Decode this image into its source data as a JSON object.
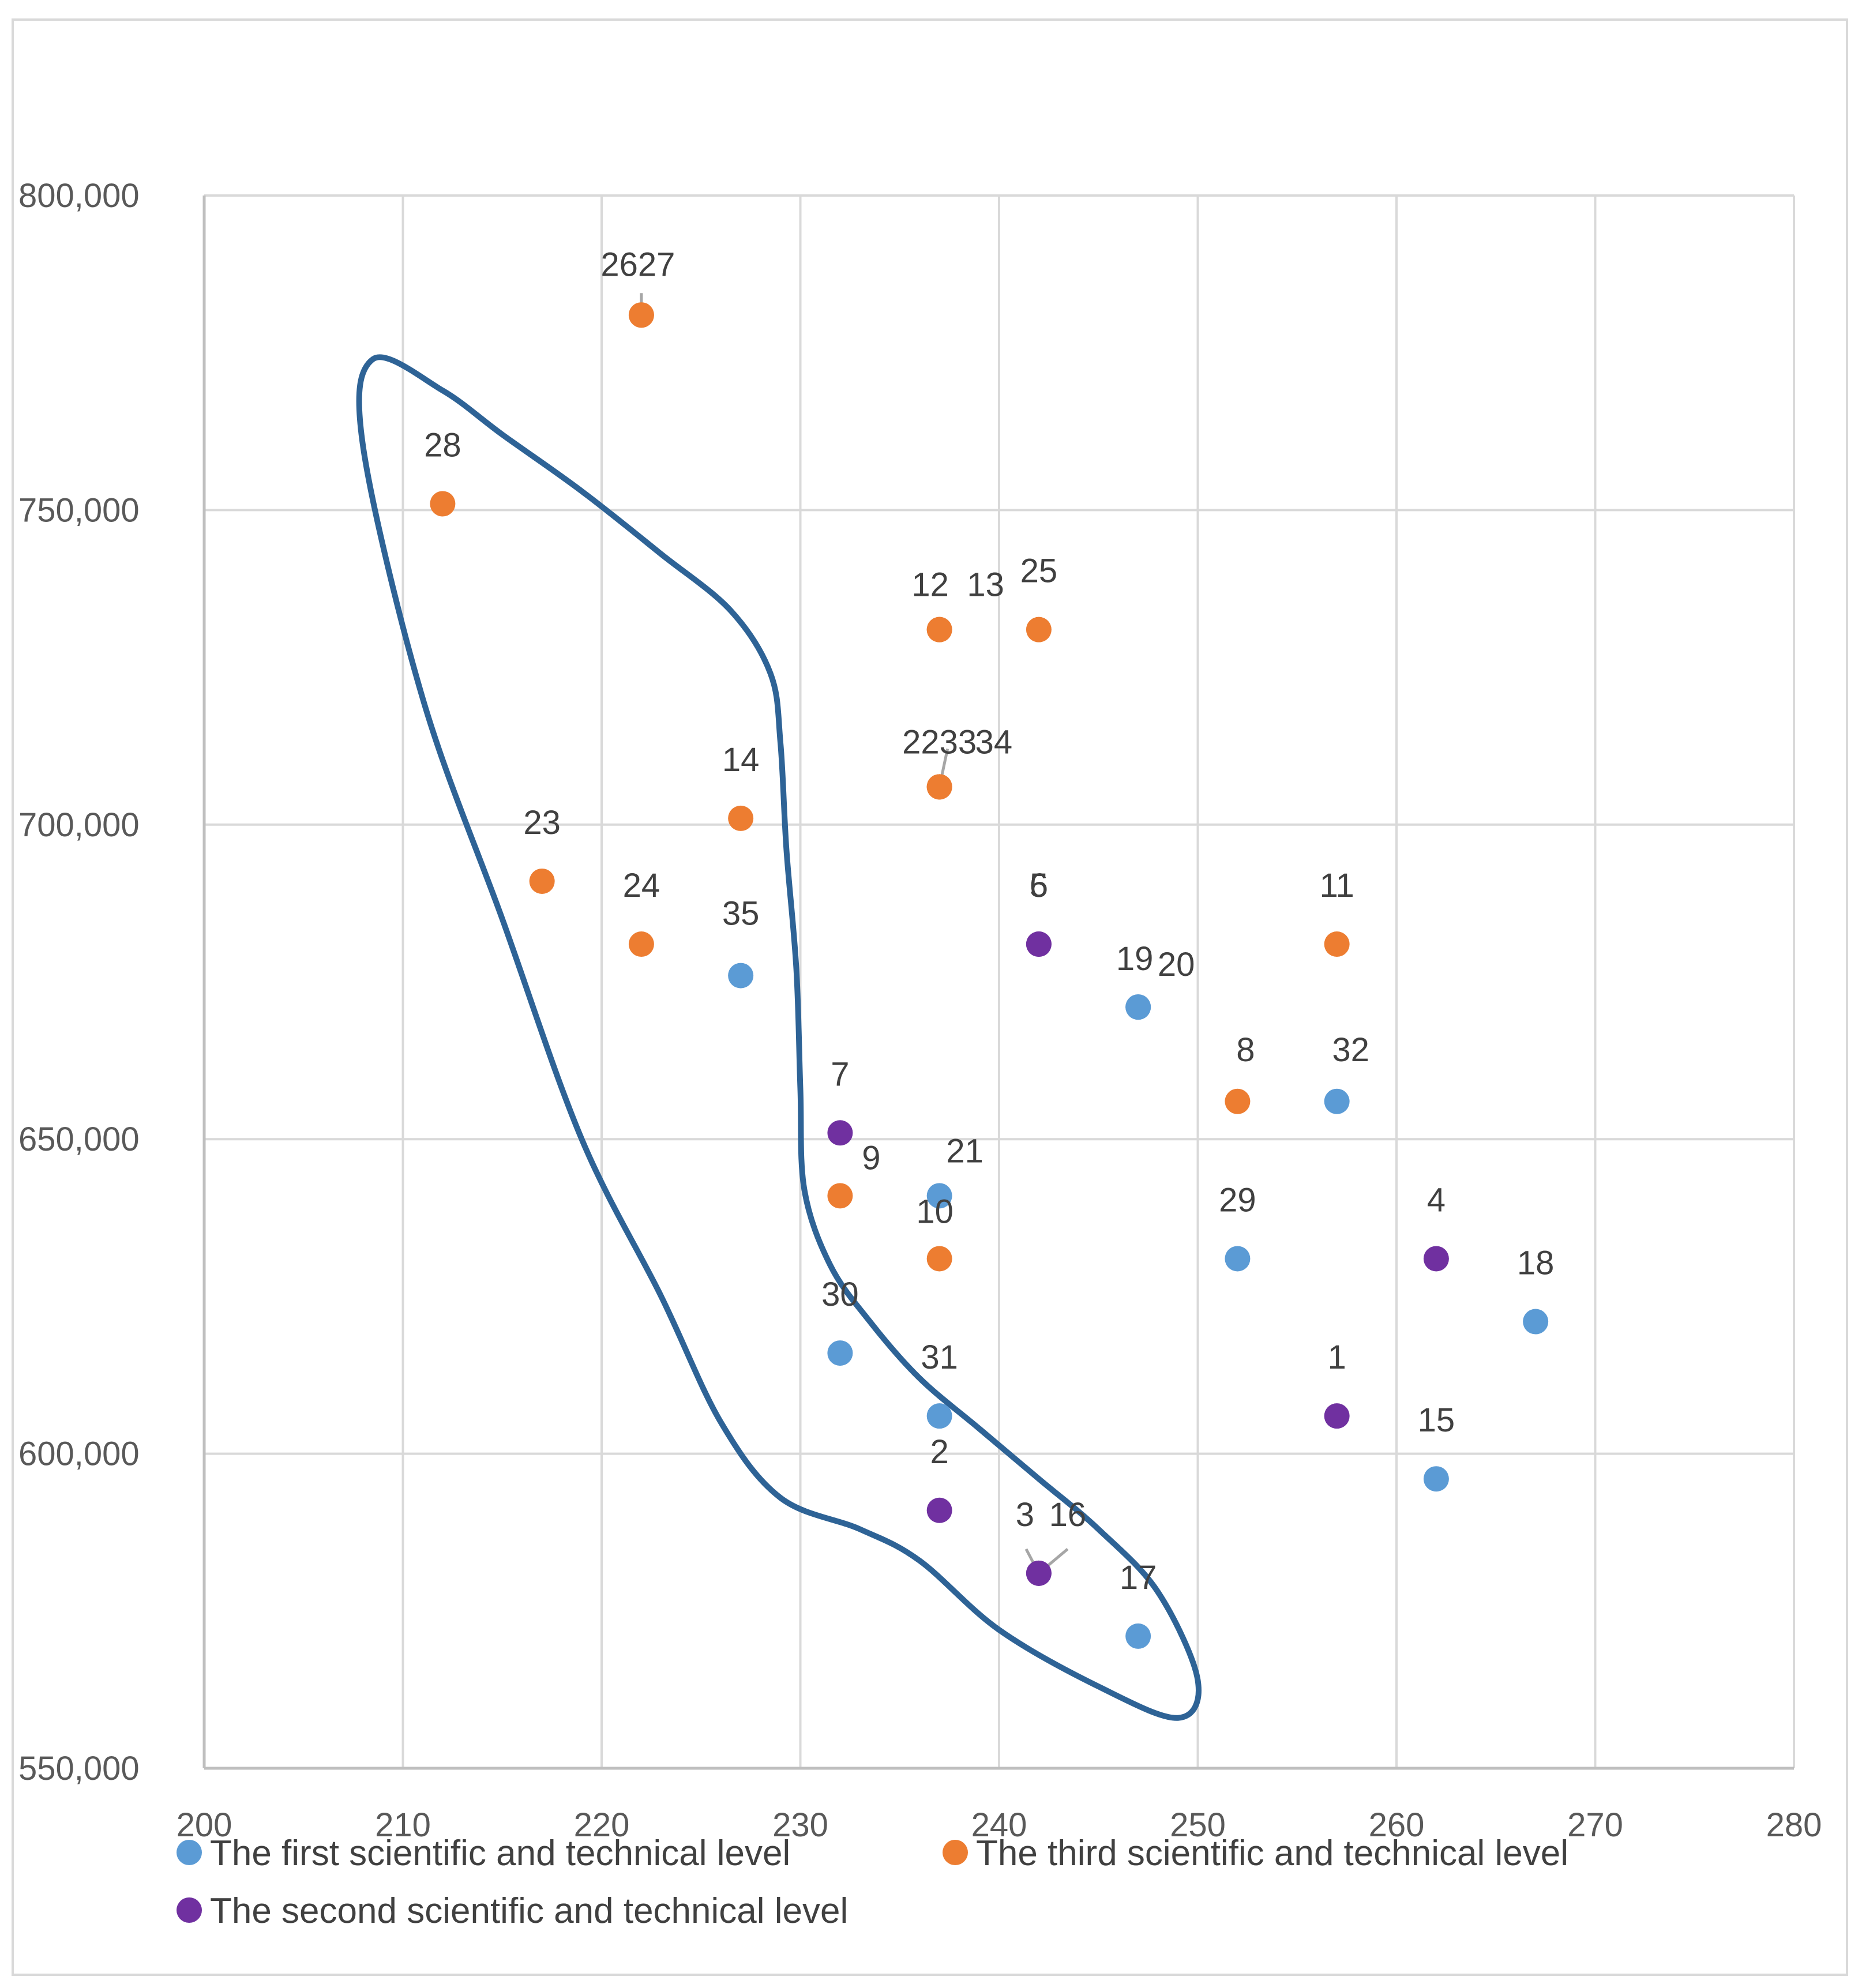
{
  "chart_data": {
    "type": "scatter",
    "title": "",
    "xlabel": "",
    "ylabel": "",
    "xlim": [
      200,
      280
    ],
    "ylim": [
      550000,
      800000
    ],
    "x_ticks": [
      200,
      210,
      220,
      230,
      240,
      250,
      260,
      270,
      280
    ],
    "x_tick_labels": [
      "200",
      "210",
      "220",
      "230",
      "240",
      "250",
      "260",
      "270",
      "280"
    ],
    "y_ticks": [
      550000,
      600000,
      650000,
      700000,
      750000,
      800000
    ],
    "y_tick_labels": [
      "550,000",
      "600,000",
      "650,000",
      "700,000",
      "750,000",
      "800,000"
    ],
    "grid": true,
    "legend_position": "bottom",
    "series": [
      {
        "name": "The first scientific and technical level",
        "color": "#5b9bd5",
        "points": [
          {
            "label": "35",
            "x": 227,
            "y": 676000
          },
          {
            "label": "19",
            "x": 247,
            "y": 671000
          },
          {
            "label": "20",
            "x": 247,
            "y": 671000
          },
          {
            "label": "32",
            "x": 257,
            "y": 656000
          },
          {
            "label": "21",
            "x": 237,
            "y": 641000
          },
          {
            "label": "29",
            "x": 252,
            "y": 631000
          },
          {
            "label": "18",
            "x": 267,
            "y": 621000
          },
          {
            "label": "30",
            "x": 232,
            "y": 616000
          },
          {
            "label": "31",
            "x": 237,
            "y": 606000
          },
          {
            "label": "15",
            "x": 262,
            "y": 596000
          },
          {
            "label": "17",
            "x": 247,
            "y": 571000
          }
        ]
      },
      {
        "name": "The third scientific and technical level",
        "color": "#ed7d31",
        "points": [
          {
            "label": "26",
            "x": 222,
            "y": 781000
          },
          {
            "label": "27",
            "x": 222,
            "y": 781000
          },
          {
            "label": "28",
            "x": 212,
            "y": 751000
          },
          {
            "label": "12",
            "x": 237,
            "y": 731000
          },
          {
            "label": "13",
            "x": 237,
            "y": 731000
          },
          {
            "label": "25",
            "x": 242,
            "y": 731000
          },
          {
            "label": "22",
            "x": 237,
            "y": 706000
          },
          {
            "label": "33",
            "x": 237,
            "y": 706000
          },
          {
            "label": "34",
            "x": 237,
            "y": 706000
          },
          {
            "label": "14",
            "x": 227,
            "y": 701000
          },
          {
            "label": "23",
            "x": 217,
            "y": 691000
          },
          {
            "label": "24",
            "x": 222,
            "y": 681000
          },
          {
            "label": "11",
            "x": 257,
            "y": 681000
          },
          {
            "label": "8",
            "x": 252,
            "y": 656000
          },
          {
            "label": "9",
            "x": 232,
            "y": 641000
          },
          {
            "label": "10",
            "x": 237,
            "y": 631000
          }
        ]
      },
      {
        "name": "The second scientific and technical level",
        "color": "#7030a0",
        "points": [
          {
            "label": "5",
            "x": 242,
            "y": 681000
          },
          {
            "label": "6",
            "x": 242,
            "y": 681000
          },
          {
            "label": "7",
            "x": 232,
            "y": 651000
          },
          {
            "label": "4",
            "x": 262,
            "y": 631000
          },
          {
            "label": "1",
            "x": 257,
            "y": 606000
          },
          {
            "label": "2",
            "x": 237,
            "y": 591000
          },
          {
            "label": "3",
            "x": 242,
            "y": 581000
          },
          {
            "label": "16",
            "x": 242,
            "y": 581000
          }
        ]
      }
    ],
    "annotation_outline": {
      "color": "#2e6396",
      "path_data": [
        [
          208.5,
          774000
        ],
        [
          212,
          769000
        ],
        [
          215,
          762000
        ],
        [
          219,
          753000
        ],
        [
          223,
          743000
        ],
        [
          226.5,
          734000
        ],
        [
          228.5,
          724000
        ],
        [
          229,
          713000
        ],
        [
          229.3,
          696000
        ],
        [
          229.8,
          677000
        ],
        [
          230,
          658000
        ],
        [
          230.2,
          642000
        ],
        [
          231.5,
          630000
        ],
        [
          233.5,
          621000
        ],
        [
          236,
          612000
        ],
        [
          239,
          604000
        ],
        [
          242,
          596000
        ],
        [
          245,
          588000
        ],
        [
          248,
          578000
        ],
        [
          250,
          564000
        ],
        [
          249,
          558000
        ],
        [
          245,
          563000
        ],
        [
          240,
          572000
        ],
        [
          236,
          583000
        ],
        [
          233,
          588000
        ],
        [
          229,
          593000
        ],
        [
          226,
          605000
        ],
        [
          223,
          625000
        ],
        [
          219,
          650000
        ],
        [
          215,
          685000
        ],
        [
          211,
          720000
        ],
        [
          208,
          760000
        ]
      ]
    }
  }
}
